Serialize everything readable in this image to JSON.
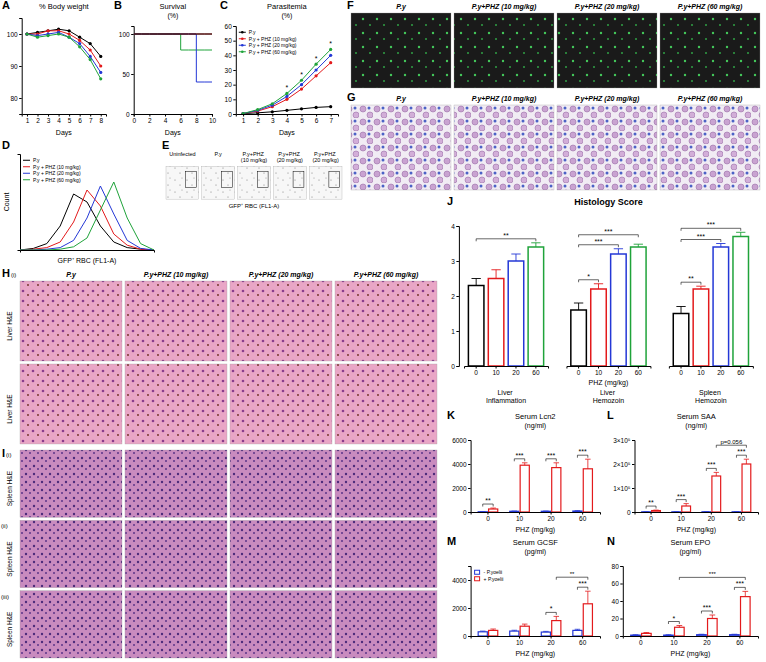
{
  "chart_data": [
    {
      "label": "A",
      "type": "line",
      "title": "% Body weight",
      "x_label": "Days",
      "x": [
        1,
        2,
        3,
        4,
        5,
        6,
        7,
        8
      ],
      "xlim": [
        0.5,
        8.5
      ],
      "xticks": [
        1,
        2,
        3,
        4,
        5,
        6,
        7,
        8
      ],
      "ylim": [
        75,
        105
      ],
      "yticks": [
        80,
        90,
        100
      ],
      "marker": "circle",
      "series": [
        {
          "color": "#000000",
          "values": [
            100,
            100.5,
            101,
            101.5,
            101,
            99,
            97,
            93
          ]
        },
        {
          "color": "#e31a1c",
          "values": [
            100,
            100,
            101,
            101,
            100,
            98,
            95,
            90
          ]
        },
        {
          "color": "#2438d6",
          "values": [
            100,
            99.5,
            100,
            100.5,
            99,
            97,
            93,
            88
          ]
        },
        {
          "color": "#1fa33a",
          "values": [
            100,
            99,
            99.5,
            100,
            99,
            96,
            92,
            86
          ]
        }
      ]
    },
    {
      "label": "B",
      "type": "line",
      "title": "Survival",
      "subtitle": "(%)",
      "x_label": "Days",
      "x": [
        0,
        1,
        2,
        3,
        4,
        5,
        6,
        7,
        8,
        9,
        10
      ],
      "xlim": [
        0,
        10
      ],
      "xticks": [
        0,
        2,
        4,
        6,
        8,
        10
      ],
      "ylim": [
        0,
        110
      ],
      "yticks": [
        0,
        50,
        100
      ],
      "line_style": "step",
      "series": [
        {
          "color": "#1fa33a",
          "values": [
            100,
            100,
            100,
            100,
            100,
            100,
            80,
            80,
            80,
            80,
            80
          ]
        },
        {
          "color": "#2438d6",
          "values": [
            100,
            100,
            100,
            100,
            100,
            100,
            100,
            100,
            40,
            40,
            40
          ]
        },
        {
          "color": "#e31a1c",
          "values": [
            100,
            100,
            100,
            100,
            100,
            100,
            100,
            100,
            100,
            100,
            100
          ]
        },
        {
          "color": "#000000",
          "values": [
            100,
            100,
            100,
            100,
            100,
            100,
            100,
            100,
            100,
            100,
            100
          ]
        }
      ]
    },
    {
      "label": "C",
      "type": "line",
      "title": "Parasitemia",
      "subtitle": "(%)",
      "x_label": "Days",
      "x": [
        1,
        2,
        3,
        4,
        5,
        6,
        7
      ],
      "xlim": [
        0.5,
        7.5
      ],
      "xticks": [
        1,
        2,
        3,
        4,
        5,
        6,
        7
      ],
      "ylim": [
        0,
        60
      ],
      "yticks": [
        0,
        10,
        20,
        30,
        40,
        50,
        60
      ],
      "marker": "circle",
      "legend": "top-left",
      "series": [
        {
          "name": "P.y",
          "color": "#000000",
          "values": [
            0.3,
            0.8,
            1.5,
            2.5,
            3.5,
            4.5,
            5
          ]
        },
        {
          "name": "P.y + PHZ (10 mg/kg)",
          "color": "#e31a1c",
          "values": [
            0.3,
            2,
            5,
            10,
            17,
            26,
            35
          ]
        },
        {
          "name": "P.y + PHZ (20 mg/kg)",
          "color": "#2438d6",
          "values": [
            0.3,
            2.5,
            6,
            12,
            20,
            30,
            40
          ]
        },
        {
          "name": "P.y + PHZ (60 mg/kg)",
          "color": "#1fa33a",
          "values": [
            0.3,
            3,
            7,
            14,
            23,
            34,
            44
          ]
        }
      ],
      "annotations": [
        {
          "x": 4,
          "text": "*"
        },
        {
          "x": 5,
          "text": "*"
        },
        {
          "x": 6,
          "text": "*"
        },
        {
          "x": 7,
          "text": "*"
        }
      ]
    },
    {
      "label": "D",
      "type": "line",
      "x_label": "GFP⁺ RBC (FL1-A)",
      "y_label": "Count",
      "x": [
        0,
        10,
        20,
        30,
        40,
        50,
        60,
        70,
        80,
        90,
        100
      ],
      "xlim": [
        0,
        100
      ],
      "ylim": [
        0,
        120
      ],
      "tick_labels": false,
      "legend": "top-left",
      "series": [
        {
          "name": "P.y",
          "color": "#000000",
          "values": [
            0,
            2,
            8,
            30,
            70,
            60,
            30,
            10,
            3,
            1,
            0
          ]
        },
        {
          "name": "P.y + PHZ (10 mg/kg)",
          "color": "#e31a1c",
          "values": [
            0,
            1,
            3,
            10,
            35,
            75,
            55,
            20,
            6,
            1,
            0
          ]
        },
        {
          "name": "P.y + PHZ (20 mg/kg)",
          "color": "#2438d6",
          "values": [
            0,
            0,
            1,
            3,
            12,
            40,
            80,
            45,
            12,
            2,
            0
          ]
        },
        {
          "name": "P.y + PHZ (60 mg/kg)",
          "color": "#1fa33a",
          "values": [
            0,
            0,
            0,
            1,
            4,
            15,
            50,
            85,
            40,
            8,
            0
          ]
        }
      ]
    },
    {
      "label": "J",
      "type": "bar",
      "title": "Histology Score",
      "x_label": "PHZ (mg/kg)",
      "categories": [
        "0",
        "10",
        "20",
        "60"
      ],
      "colors": [
        "#000000",
        "#e31a1c",
        "#2438d6",
        "#1fa33a"
      ],
      "ylim": [
        0,
        4
      ],
      "yticks": [
        0,
        1,
        2,
        3,
        4
      ],
      "groups": [
        {
          "name": "Liver Inflammation",
          "values": [
            2.3,
            2.5,
            3.0,
            3.4
          ],
          "errors": [
            0.2,
            0.25,
            0.2,
            0.12
          ]
        },
        {
          "name": "Liver Hemozoin",
          "values": [
            1.6,
            2.2,
            3.2,
            3.4
          ],
          "errors": [
            0.2,
            0.15,
            0.15,
            0.08
          ]
        },
        {
          "name": "Spleen Hemozoin",
          "values": [
            1.5,
            2.2,
            3.4,
            3.7
          ],
          "errors": [
            0.2,
            0.08,
            0.1,
            0.12
          ]
        }
      ],
      "annotations": [
        {
          "group": 0,
          "from": 0,
          "to": 3,
          "text": "**"
        },
        {
          "group": 1,
          "from": 0,
          "to": 1,
          "text": "*"
        },
        {
          "group": 1,
          "from": 0,
          "to": 2,
          "text": "***"
        },
        {
          "group": 1,
          "from": 0,
          "to": 3,
          "text": "***"
        },
        {
          "group": 2,
          "from": 0,
          "to": 1,
          "text": "**"
        },
        {
          "group": 2,
          "from": 0,
          "to": 2,
          "text": "***"
        },
        {
          "group": 2,
          "from": 0,
          "to": 3,
          "text": "***"
        }
      ]
    },
    {
      "label": "K",
      "type": "bar",
      "title": "Serum Lcn2",
      "subtitle": "(ng/ml)",
      "x_label": "PHZ (mg/kg)",
      "categories": [
        "0",
        "10",
        "20",
        "60"
      ],
      "ylim": [
        0,
        6000
      ],
      "yticks": [
        0,
        2000,
        4000,
        6000
      ],
      "series": [
        {
          "color": "#2438d6",
          "values": [
            20,
            60,
            60,
            80
          ],
          "errors": [
            10,
            20,
            20,
            30
          ]
        },
        {
          "color": "#e31a1c",
          "values": [
            250,
            3900,
            3700,
            3600
          ],
          "errors": [
            80,
            200,
            400,
            800
          ]
        }
      ],
      "annotations": [
        {
          "category": 0,
          "text": "**"
        },
        {
          "category": 1,
          "text": "***"
        },
        {
          "category": 2,
          "text": "***"
        },
        {
          "category": 3,
          "text": "***"
        }
      ]
    },
    {
      "label": "L",
      "type": "bar",
      "title": "Serum SAA",
      "subtitle": "(ng/ml)",
      "x_label": "PHZ (mg/kg)",
      "categories": [
        "0",
        "10",
        "20",
        "60"
      ],
      "ylim": [
        0,
        300000
      ],
      "yticks": [
        0,
        {
          "value": 100000,
          "label": "1×10⁵"
        },
        {
          "value": 200000,
          "label": "2×10⁵"
        },
        {
          "value": 300000,
          "label": "3×10⁵"
        }
      ],
      "series": [
        {
          "color": "#2438d6",
          "values": [
            800,
            800,
            900,
            900
          ],
          "errors": [
            200,
            200,
            300,
            300
          ]
        },
        {
          "color": "#e31a1c",
          "values": [
            6000,
            25000,
            150000,
            200000
          ],
          "errors": [
            2000,
            10000,
            15000,
            20000
          ]
        }
      ],
      "annotations": [
        {
          "category": 0,
          "text": "**"
        },
        {
          "category": 1,
          "text": "***"
        },
        {
          "category": 2,
          "text": "***"
        },
        {
          "category": 3,
          "text": "***"
        },
        {
          "series": 1,
          "from": 2,
          "to": 3,
          "text": "p=0.056"
        }
      ]
    },
    {
      "label": "M",
      "type": "bar",
      "title": "Serum GCSF",
      "subtitle": "(pg/ml)",
      "x_label": "PHZ (mg/kg)",
      "categories": [
        "0",
        "10",
        "20",
        "60"
      ],
      "ylim": [
        0,
        5000
      ],
      "yticks": [
        0,
        2000,
        4000
      ],
      "legend": "top-left",
      "series": [
        {
          "name": "- P.yoelii",
          "color": "#2438d6",
          "values": [
            300,
            350,
            280,
            400
          ],
          "errors": [
            50,
            60,
            50,
            80
          ]
        },
        {
          "name": "+ P.yoelii",
          "color": "#e31a1c",
          "values": [
            400,
            700,
            1100,
            2300
          ],
          "errors": [
            100,
            150,
            300,
            900
          ]
        }
      ],
      "annotations": [
        {
          "category": 2,
          "text": "*"
        },
        {
          "category": 3,
          "text": "***"
        },
        {
          "series": 1,
          "from": 2,
          "to": 3,
          "text": "**"
        }
      ]
    },
    {
      "label": "N",
      "type": "bar",
      "title": "Serum EPO",
      "subtitle": "(pg/ml)",
      "x_label": "PHZ (mg/kg)",
      "categories": [
        "0",
        "10",
        "20",
        "60"
      ],
      "ylim": [
        0,
        80
      ],
      "yticks": [
        0,
        20,
        40,
        60,
        80
      ],
      "series": [
        {
          "color": "#2438d6",
          "values": [
            1,
            1,
            1.5,
            1.5
          ],
          "errors": [
            0.5,
            0.5,
            0.5,
            0.5
          ]
        },
        {
          "color": "#e31a1c",
          "values": [
            3,
            10,
            20,
            45
          ],
          "errors": [
            1,
            2,
            4,
            6
          ]
        }
      ],
      "annotations": [
        {
          "category": 1,
          "text": "*"
        },
        {
          "category": 2,
          "text": "***"
        },
        {
          "category": 3,
          "text": "***"
        },
        {
          "series": 1,
          "from": 1,
          "to": 3,
          "text": "***"
        }
      ]
    }
  ],
  "image_panels": [
    {
      "label": "E",
      "titles": [
        "Uninfected",
        "P.y",
        "P.y+PHZ (10 mg/kg)",
        "P.y+PHZ (20 mg/kg)",
        "P.y+PHZ (20 mg/kg)"
      ],
      "x_label": "GFP⁺ RBC (FL1-A)"
    },
    {
      "label": "F",
      "titles": [
        "P.y",
        "P.y+PHZ (10 mg/kg)",
        "P.y+PHZ (20 mg/kg)",
        "P.y+PHZ (60 mg/kg)"
      ]
    },
    {
      "label": "G",
      "titles": [
        "P.y",
        "P.y+PHZ (10 mg/kg)",
        "P.y+PHZ (20 mg/kg)",
        "P.y+PHZ (60 mg/kg)"
      ]
    },
    {
      "label": "H",
      "titles": [
        "P.y",
        "P.y+PHZ (10 mg/kg)",
        "P.y+PHZ (20 mg/kg)",
        "P.y+PHZ (60 mg/kg)"
      ],
      "rows": [
        {
          "sublabel": "(i)",
          "name": "Liver H&E"
        },
        {
          "name": "Liver H&E"
        }
      ]
    },
    {
      "label": "I",
      "rows": [
        {
          "sublabel": "(i)",
          "name": "Spleen H&E"
        },
        {
          "sublabel": "(ii)",
          "name": "Spleen H&E"
        },
        {
          "sublabel": "(iii)",
          "name": "Spleen H&E"
        }
      ]
    }
  ]
}
